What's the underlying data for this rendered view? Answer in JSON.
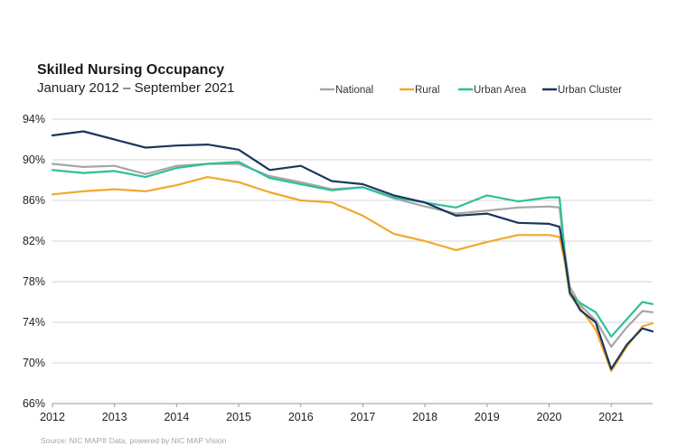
{
  "chart_data": {
    "type": "line",
    "title": "Skilled Nursing Occupancy",
    "subtitle": "January 2012 – September 2021",
    "source": "Source: NIC MAP® Data, powered by NIC MAP Vision",
    "xlabel": "",
    "ylabel": "",
    "ylim": [
      0.66,
      0.94
    ],
    "y_ticks": [
      "94%",
      "90%",
      "86%",
      "82%",
      "78%",
      "74%",
      "70%",
      "66%"
    ],
    "x_ticks": [
      "2012",
      "2013",
      "2014",
      "2015",
      "2016",
      "2017",
      "2018",
      "2019",
      "2020",
      "2021"
    ],
    "grid": true,
    "legend_position": "top-right",
    "x_start": "2012-01",
    "x_end": "2021-09",
    "series": [
      {
        "name": "National",
        "color": "#a6a6a6",
        "points": [
          [
            "2012-01",
            89.6
          ],
          [
            "2012-07",
            89.3
          ],
          [
            "2013-01",
            89.4
          ],
          [
            "2013-07",
            88.6
          ],
          [
            "2014-01",
            89.4
          ],
          [
            "2014-07",
            89.6
          ],
          [
            "2015-01",
            89.6
          ],
          [
            "2015-07",
            88.4
          ],
          [
            "2016-01",
            87.8
          ],
          [
            "2016-07",
            87.1
          ],
          [
            "2017-01",
            87.3
          ],
          [
            "2017-07",
            86.2
          ],
          [
            "2018-01",
            85.4
          ],
          [
            "2018-07",
            84.7
          ],
          [
            "2019-01",
            85.0
          ],
          [
            "2019-07",
            85.3
          ],
          [
            "2020-01",
            85.4
          ],
          [
            "2020-03",
            85.3
          ],
          [
            "2020-04",
            81.0
          ],
          [
            "2020-05",
            77.5
          ],
          [
            "2020-07",
            75.7
          ],
          [
            "2020-10",
            74.2
          ],
          [
            "2021-01",
            71.6
          ],
          [
            "2021-04",
            73.5
          ],
          [
            "2021-07",
            75.1
          ],
          [
            "2021-09",
            75.0
          ]
        ]
      },
      {
        "name": "Rural",
        "color": "#f2a82c",
        "points": [
          [
            "2012-01",
            86.6
          ],
          [
            "2012-07",
            86.9
          ],
          [
            "2013-01",
            87.1
          ],
          [
            "2013-07",
            86.9
          ],
          [
            "2014-01",
            87.5
          ],
          [
            "2014-07",
            88.3
          ],
          [
            "2015-01",
            87.8
          ],
          [
            "2015-07",
            86.8
          ],
          [
            "2016-01",
            86.0
          ],
          [
            "2016-07",
            85.8
          ],
          [
            "2017-01",
            84.5
          ],
          [
            "2017-07",
            82.7
          ],
          [
            "2018-01",
            82.0
          ],
          [
            "2018-07",
            81.1
          ],
          [
            "2019-01",
            81.9
          ],
          [
            "2019-07",
            82.6
          ],
          [
            "2020-01",
            82.6
          ],
          [
            "2020-03",
            82.4
          ],
          [
            "2020-04",
            80.0
          ],
          [
            "2020-05",
            76.7
          ],
          [
            "2020-07",
            75.4
          ],
          [
            "2020-10",
            73.3
          ],
          [
            "2021-01",
            69.2
          ],
          [
            "2021-04",
            71.6
          ],
          [
            "2021-07",
            73.6
          ],
          [
            "2021-09",
            73.9
          ]
        ]
      },
      {
        "name": "Urban Area",
        "color": "#2ebf9a",
        "points": [
          [
            "2012-01",
            89.0
          ],
          [
            "2012-07",
            88.7
          ],
          [
            "2013-01",
            88.9
          ],
          [
            "2013-07",
            88.3
          ],
          [
            "2014-01",
            89.2
          ],
          [
            "2014-07",
            89.6
          ],
          [
            "2015-01",
            89.8
          ],
          [
            "2015-07",
            88.2
          ],
          [
            "2016-01",
            87.6
          ],
          [
            "2016-07",
            87.0
          ],
          [
            "2017-01",
            87.3
          ],
          [
            "2017-07",
            86.3
          ],
          [
            "2018-01",
            85.8
          ],
          [
            "2018-07",
            85.3
          ],
          [
            "2019-01",
            86.5
          ],
          [
            "2019-07",
            85.9
          ],
          [
            "2020-01",
            86.3
          ],
          [
            "2020-03",
            86.3
          ],
          [
            "2020-04",
            81.0
          ],
          [
            "2020-05",
            76.8
          ],
          [
            "2020-07",
            75.9
          ],
          [
            "2020-10",
            75.0
          ],
          [
            "2021-01",
            72.6
          ],
          [
            "2021-04",
            74.3
          ],
          [
            "2021-07",
            76.0
          ],
          [
            "2021-09",
            75.8
          ]
        ]
      },
      {
        "name": "Urban Cluster",
        "color": "#1b365d",
        "points": [
          [
            "2012-01",
            92.4
          ],
          [
            "2012-07",
            92.8
          ],
          [
            "2013-01",
            92.0
          ],
          [
            "2013-07",
            91.2
          ],
          [
            "2014-01",
            91.4
          ],
          [
            "2014-07",
            91.5
          ],
          [
            "2015-01",
            91.0
          ],
          [
            "2015-07",
            89.0
          ],
          [
            "2016-01",
            89.4
          ],
          [
            "2016-07",
            87.9
          ],
          [
            "2017-01",
            87.6
          ],
          [
            "2017-07",
            86.5
          ],
          [
            "2018-01",
            85.8
          ],
          [
            "2018-07",
            84.5
          ],
          [
            "2019-01",
            84.7
          ],
          [
            "2019-07",
            83.8
          ],
          [
            "2020-01",
            83.7
          ],
          [
            "2020-03",
            83.4
          ],
          [
            "2020-04",
            80.5
          ],
          [
            "2020-05",
            77.0
          ],
          [
            "2020-07",
            75.2
          ],
          [
            "2020-10",
            74.0
          ],
          [
            "2021-01",
            69.4
          ],
          [
            "2021-04",
            71.8
          ],
          [
            "2021-07",
            73.4
          ],
          [
            "2021-09",
            73.1
          ]
        ]
      }
    ]
  }
}
